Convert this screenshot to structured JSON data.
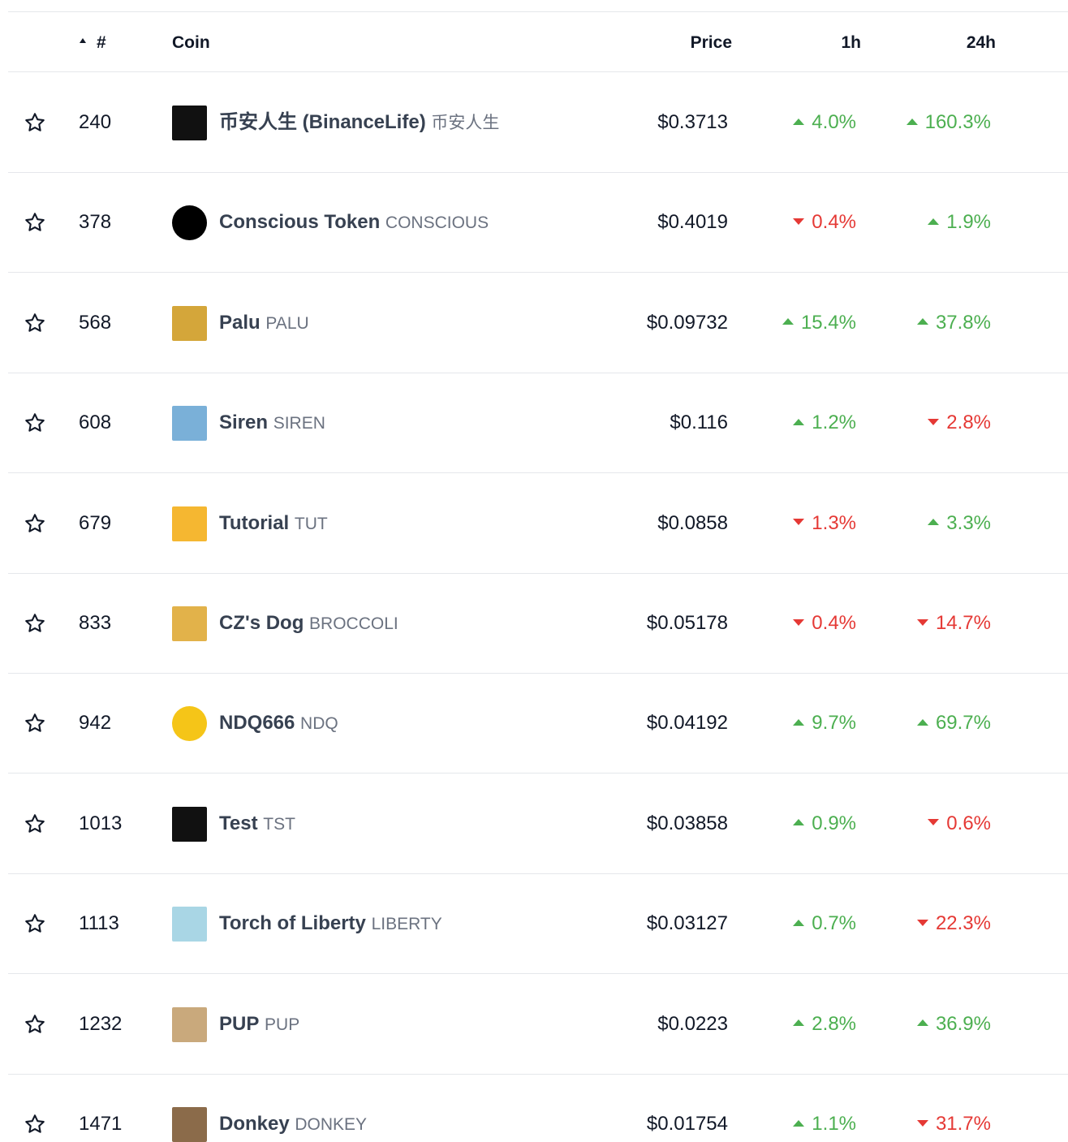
{
  "table": {
    "columns": {
      "rank": "#",
      "coin": "Coin",
      "price": "Price",
      "h1": "1h",
      "h24": "24h"
    },
    "rows": [
      {
        "rank": "240",
        "name": "币安人生 (BinanceLife)",
        "symbol": "币安人生",
        "price": "$0.3713",
        "h1": {
          "dir": "up",
          "text": "4.0%"
        },
        "h24": {
          "dir": "up",
          "text": "160.3%"
        }
      },
      {
        "rank": "378",
        "name": "Conscious Token",
        "symbol": "CONSCIOUS",
        "price": "$0.4019",
        "h1": {
          "dir": "down",
          "text": "0.4%"
        },
        "h24": {
          "dir": "up",
          "text": "1.9%"
        }
      },
      {
        "rank": "568",
        "name": "Palu",
        "symbol": "PALU",
        "price": "$0.09732",
        "h1": {
          "dir": "up",
          "text": "15.4%"
        },
        "h24": {
          "dir": "up",
          "text": "37.8%"
        }
      },
      {
        "rank": "608",
        "name": "Siren",
        "symbol": "SIREN",
        "price": "$0.116",
        "h1": {
          "dir": "up",
          "text": "1.2%"
        },
        "h24": {
          "dir": "down",
          "text": "2.8%"
        }
      },
      {
        "rank": "679",
        "name": "Tutorial",
        "symbol": "TUT",
        "price": "$0.0858",
        "h1": {
          "dir": "down",
          "text": "1.3%"
        },
        "h24": {
          "dir": "up",
          "text": "3.3%"
        }
      },
      {
        "rank": "833",
        "name": "CZ's Dog",
        "symbol": "BROCCOLI",
        "price": "$0.05178",
        "h1": {
          "dir": "down",
          "text": "0.4%"
        },
        "h24": {
          "dir": "down",
          "text": "14.7%"
        }
      },
      {
        "rank": "942",
        "name": "NDQ666",
        "symbol": "NDQ",
        "price": "$0.04192",
        "h1": {
          "dir": "up",
          "text": "9.7%"
        },
        "h24": {
          "dir": "up",
          "text": "69.7%"
        }
      },
      {
        "rank": "1013",
        "name": "Test",
        "symbol": "TST",
        "price": "$0.03858",
        "h1": {
          "dir": "up",
          "text": "0.9%"
        },
        "h24": {
          "dir": "down",
          "text": "0.6%"
        }
      },
      {
        "rank": "1113",
        "name": "Torch of Liberty",
        "symbol": "LIBERTY",
        "price": "$0.03127",
        "h1": {
          "dir": "up",
          "text": "0.7%"
        },
        "h24": {
          "dir": "down",
          "text": "22.3%"
        }
      },
      {
        "rank": "1232",
        "name": "PUP",
        "symbol": "PUP",
        "price": "$0.0223",
        "h1": {
          "dir": "up",
          "text": "2.8%"
        },
        "h24": {
          "dir": "up",
          "text": "36.9%"
        }
      },
      {
        "rank": "1471",
        "name": "Donkey",
        "symbol": "DONKEY",
        "price": "$0.01754",
        "h1": {
          "dir": "up",
          "text": "1.1%"
        },
        "h24": {
          "dir": "down",
          "text": "31.7%"
        }
      }
    ]
  }
}
